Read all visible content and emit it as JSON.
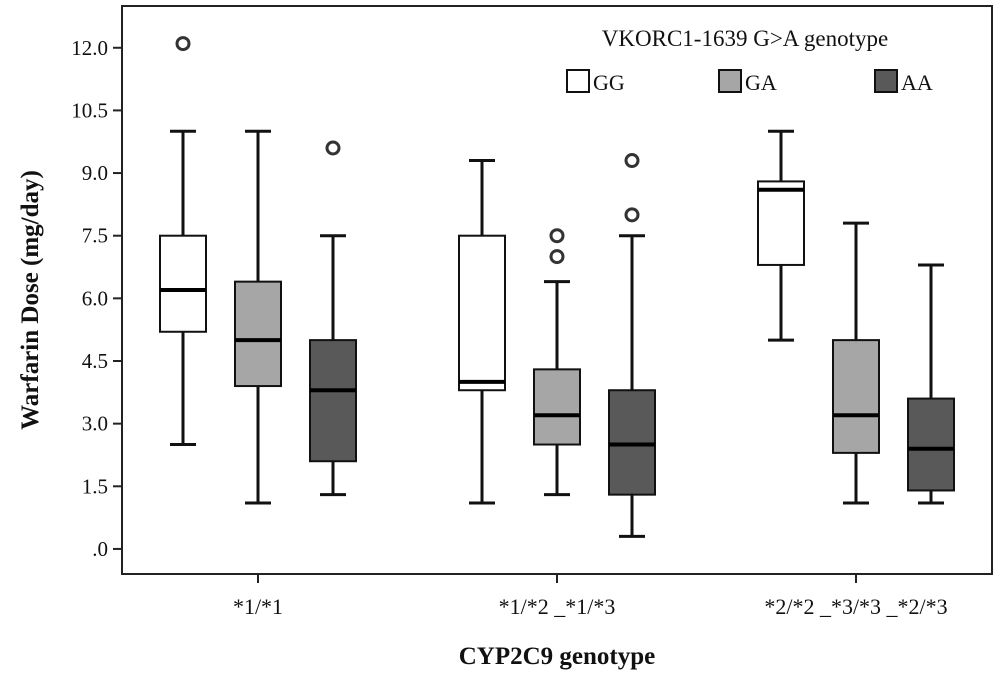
{
  "chart_data": {
    "type": "boxplot",
    "title": "",
    "xlabel": "CYP2C9 genotype",
    "ylabel": "Warfarin Dose (mg/day)",
    "ylim": [
      -0.6,
      13.0
    ],
    "yticks": [
      {
        "value": 0.0,
        "label": ".0"
      },
      {
        "value": 1.5,
        "label": "1.5"
      },
      {
        "value": 3.0,
        "label": "3.0"
      },
      {
        "value": 4.5,
        "label": "4.5"
      },
      {
        "value": 6.0,
        "label": "6.0"
      },
      {
        "value": 7.5,
        "label": "7.5"
      },
      {
        "value": 9.0,
        "label": "9.0"
      },
      {
        "value": 10.5,
        "label": "10.5"
      },
      {
        "value": 12.0,
        "label": "12.0"
      }
    ],
    "categories": [
      "*1/*1",
      "*1/*2 _*1/*3",
      "*2/*2 _*3/*3 _*2/*3"
    ],
    "legend": {
      "title": "VKORC1-1639 G>A genotype",
      "position": "top-right"
    },
    "colors": {
      "GG": "#ffffff",
      "GA": "#a6a6a6",
      "AA": "#595959"
    },
    "series": [
      {
        "name": "GG",
        "boxes": [
          {
            "whisker_low": 2.5,
            "q1": 5.2,
            "median": 6.2,
            "q3": 7.5,
            "whisker_high": 10.0,
            "outliers": [
              12.1
            ]
          },
          {
            "whisker_low": 1.1,
            "q1": 3.8,
            "median": 4.0,
            "q3": 7.5,
            "whisker_high": 9.3,
            "outliers": []
          },
          {
            "whisker_low": 5.0,
            "q1": 6.8,
            "median": 8.6,
            "q3": 8.8,
            "whisker_high": 10.0,
            "outliers": []
          }
        ]
      },
      {
        "name": "GA",
        "boxes": [
          {
            "whisker_low": 1.1,
            "q1": 3.9,
            "median": 5.0,
            "q3": 6.4,
            "whisker_high": 10.0,
            "outliers": []
          },
          {
            "whisker_low": 1.3,
            "q1": 2.5,
            "median": 3.2,
            "q3": 4.3,
            "whisker_high": 6.4,
            "outliers": [
              7.0,
              7.5
            ]
          },
          {
            "whisker_low": 1.1,
            "q1": 2.3,
            "median": 3.2,
            "q3": 5.0,
            "whisker_high": 7.8,
            "outliers": []
          }
        ]
      },
      {
        "name": "AA",
        "boxes": [
          {
            "whisker_low": 1.3,
            "q1": 2.1,
            "median": 3.8,
            "q3": 5.0,
            "whisker_high": 7.5,
            "outliers": [
              9.6
            ]
          },
          {
            "whisker_low": 0.3,
            "q1": 1.3,
            "median": 2.5,
            "q3": 3.8,
            "whisker_high": 7.5,
            "outliers": [
              8.0,
              9.3
            ]
          },
          {
            "whisker_low": 1.1,
            "q1": 1.4,
            "median": 2.4,
            "q3": 3.6,
            "whisker_high": 6.8,
            "outliers": []
          }
        ]
      }
    ]
  }
}
